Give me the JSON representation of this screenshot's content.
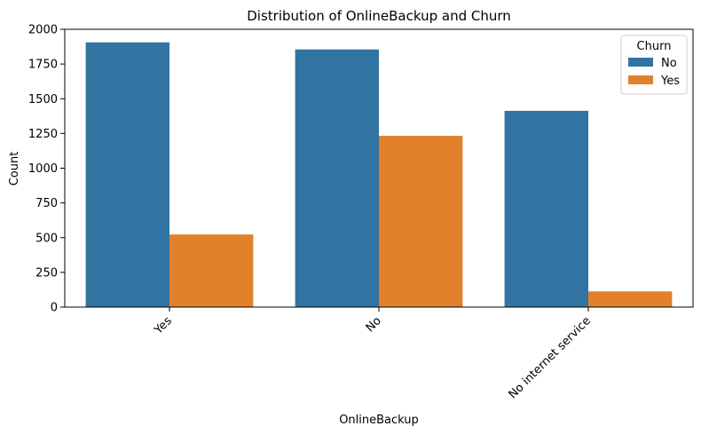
{
  "chart_data": {
    "type": "bar",
    "title": "Distribution of OnlineBackup and Churn",
    "xlabel": "OnlineBackup",
    "ylabel": "Count",
    "categories": [
      "Yes",
      "No",
      "No internet service"
    ],
    "series": [
      {
        "name": "No",
        "color": "#3274a1",
        "values": [
          1906,
          1855,
          1413
        ]
      },
      {
        "name": "Yes",
        "color": "#e1812c",
        "values": [
          523,
          1233,
          113
        ]
      }
    ],
    "ylim": [
      0,
      2000
    ],
    "yticks": [
      0,
      250,
      500,
      750,
      1000,
      1250,
      1500,
      1750,
      2000
    ],
    "grid": false,
    "legend": {
      "title": "Churn",
      "placement": "top-right"
    }
  }
}
